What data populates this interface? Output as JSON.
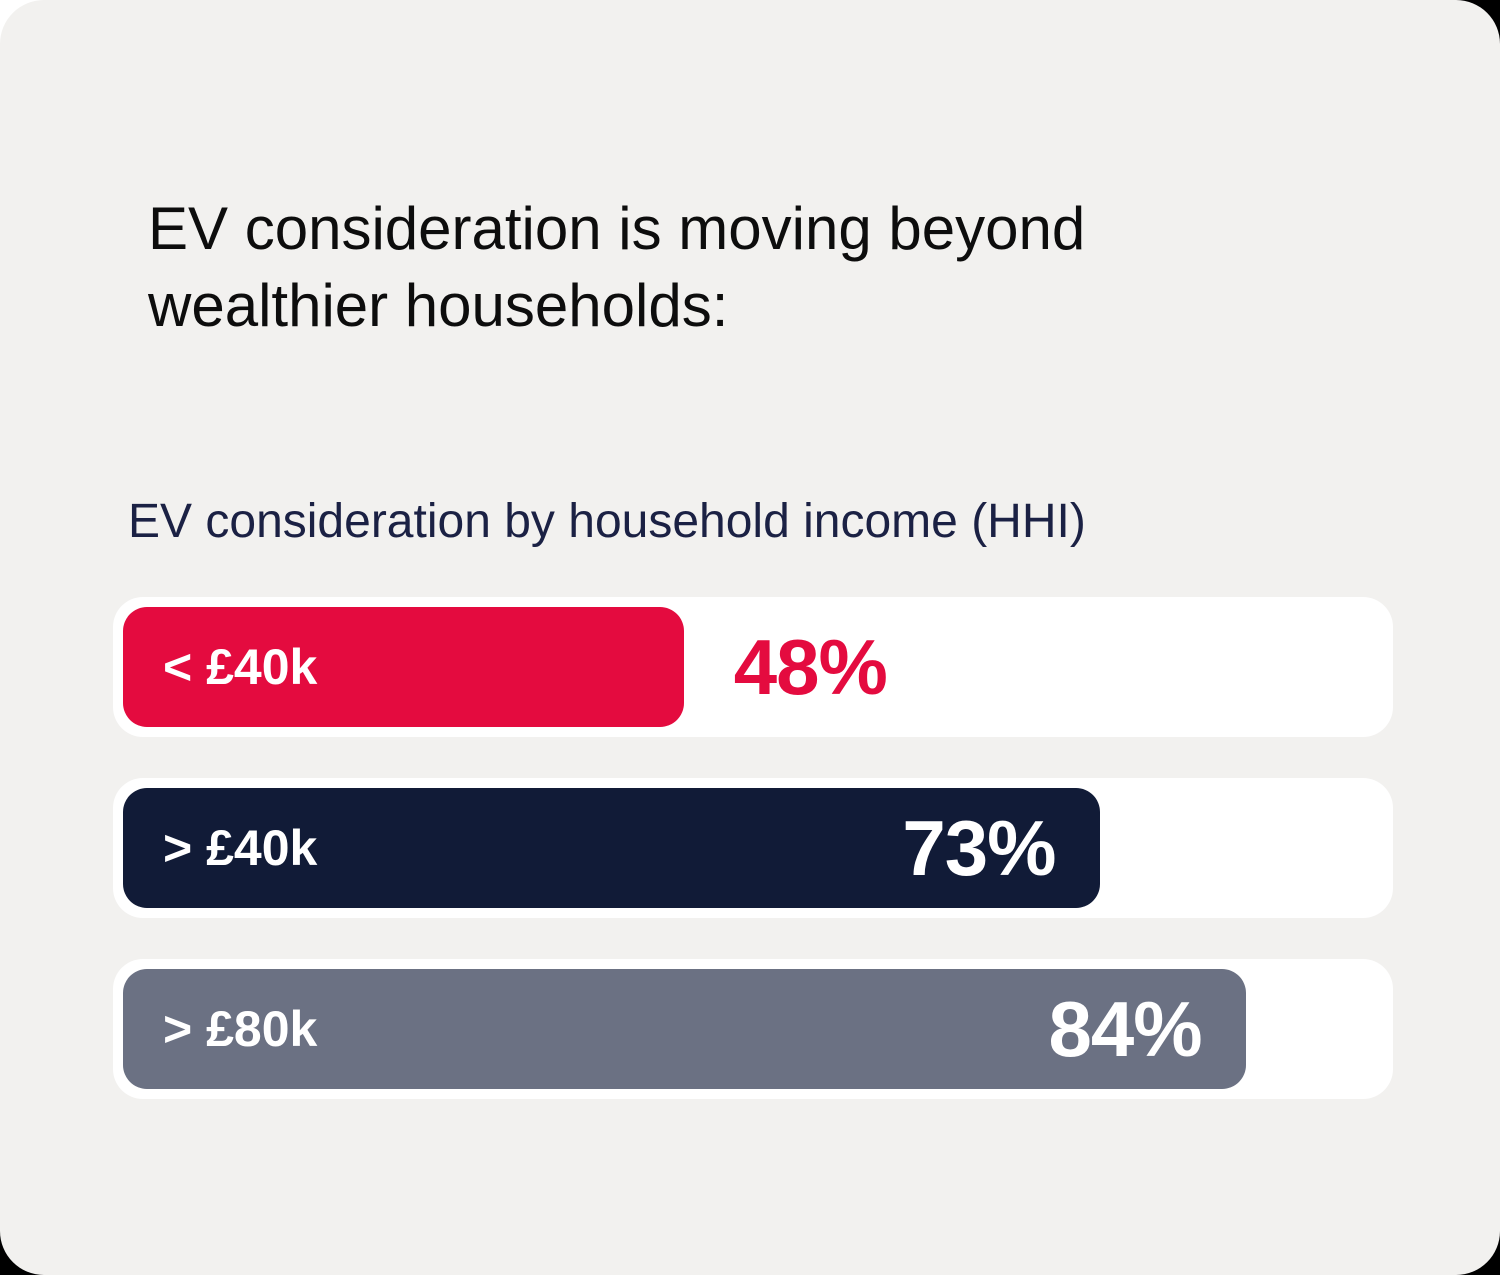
{
  "card": {
    "title": "EV consideration is moving beyond wealthier households:",
    "chart_heading": "EV consideration by household income (HHI)"
  },
  "colors": {
    "backdrop": "#000000",
    "corner_patch": "#FFFFFF",
    "card_bg": "#F2F1EF",
    "track": "#FFFFFF",
    "title_text": "#0D0D0D",
    "heading_text": "#1B2144",
    "bar_label_text": "#FFFFFF",
    "accent_red": "#E40B3F",
    "accent_navy": "#111B37",
    "accent_gray": "#6B7183"
  },
  "chart_data": {
    "type": "bar",
    "orientation": "horizontal",
    "title": "EV consideration by household income (HHI)",
    "categories": [
      "< £40k",
      "> £40k",
      "> £80k"
    ],
    "values": [
      48,
      73,
      84
    ],
    "value_unit": "%",
    "xlim": [
      0,
      100
    ],
    "grid": false,
    "legend": false,
    "bars": [
      {
        "label": "< £40k",
        "value": 48,
        "value_label": "48%",
        "fill_pct": 44.5,
        "fill_color": "#E40B3F",
        "value_color": "#E40B3F",
        "value_position": "outside"
      },
      {
        "label": "> £40k",
        "value": 73,
        "value_label": "73%",
        "fill_pct": 77.5,
        "fill_color": "#111B37",
        "value_color": "#FFFFFF",
        "value_position": "inside"
      },
      {
        "label": "> £80k",
        "value": 84,
        "value_label": "84%",
        "fill_pct": 89.1,
        "fill_color": "#6B7183",
        "value_color": "#FFFFFF",
        "value_position": "inside"
      }
    ]
  }
}
